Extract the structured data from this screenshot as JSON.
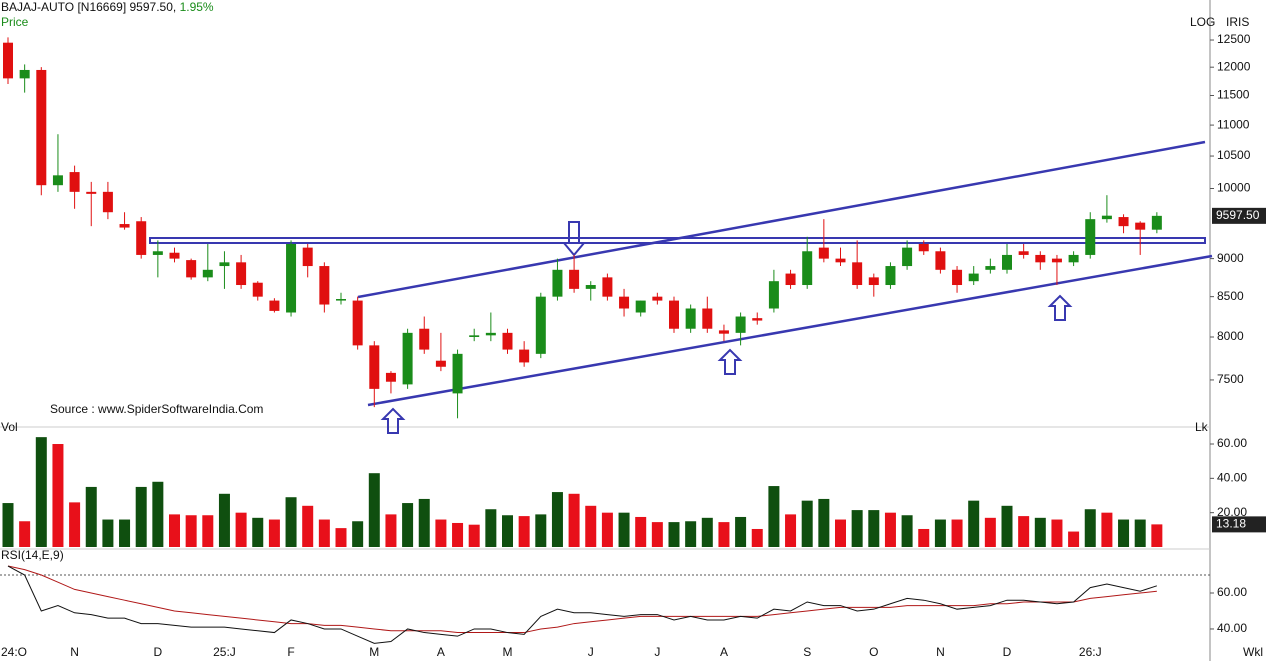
{
  "chart_data": [
    {
      "type": "candlestick",
      "title": "BAJAJ-AUTO [N16669] 9597.50,",
      "change_label": "1.95%",
      "y_label": "Price",
      "scale_label": "LOG",
      "brand": "IRIS",
      "annotation": "Source : www.SpiderSoftwareIndia.Com",
      "log": true,
      "up_color": "#1a8c1a",
      "down_color": "#e01010",
      "ylim": [
        7009,
        12979
      ],
      "yticks": [
        7500,
        8000,
        8500,
        9000,
        10000,
        10500,
        11000,
        11500,
        12000,
        12500
      ],
      "last_price": {
        "value": 9597.5,
        "label": "9597.50"
      },
      "open": [
        12450,
        11800,
        11950,
        10050,
        10250,
        9950,
        9950,
        9480,
        9520,
        9050,
        9080,
        8980,
        8750,
        8900,
        8950,
        8680,
        8450,
        8300,
        9150,
        8900,
        8450,
        8450,
        7900,
        7580,
        7450,
        8100,
        7720,
        7350,
        8000,
        8020,
        8050,
        7850,
        7800,
        8500,
        8850,
        8600,
        8750,
        8500,
        8300,
        8500,
        8450,
        8100,
        8350,
        8080,
        8050,
        8230,
        8350,
        8800,
        8650,
        9150,
        9000,
        8950,
        8750,
        8650,
        8900,
        9200,
        9100,
        8850,
        8700,
        8850,
        8850,
        9100,
        9050,
        9000,
        8950,
        9050,
        9550,
        9580,
        9500,
        9400
      ],
      "high": [
        12550,
        12050,
        12000,
        10850,
        10350,
        10100,
        10100,
        9650,
        9580,
        9250,
        9150,
        9000,
        9200,
        9100,
        9050,
        8700,
        8480,
        9250,
        9200,
        8950,
        8550,
        8500,
        7950,
        7600,
        8100,
        8250,
        8050,
        7850,
        8100,
        8300,
        8100,
        7950,
        8550,
        9000,
        9050,
        8700,
        8800,
        8600,
        8450,
        8550,
        8500,
        8400,
        8500,
        8150,
        8300,
        8300,
        8850,
        8850,
        9300,
        9550,
        9150,
        9250,
        8800,
        8950,
        9250,
        9250,
        9150,
        8900,
        8900,
        9000,
        9200,
        9200,
        9100,
        9050,
        9100,
        9650,
        9900,
        9620,
        9520,
        9650
      ],
      "low": [
        11700,
        11550,
        9900,
        9950,
        9700,
        9450,
        9550,
        9400,
        9000,
        8750,
        8950,
        8720,
        8700,
        8600,
        8600,
        8450,
        8300,
        8250,
        8750,
        8300,
        8400,
        7850,
        7200,
        7350,
        7400,
        7800,
        7600,
        7080,
        7950,
        7950,
        7800,
        7650,
        7750,
        8450,
        8550,
        8450,
        8450,
        8250,
        8250,
        8400,
        8050,
        8050,
        8050,
        7950,
        7900,
        8150,
        8300,
        8600,
        8600,
        8950,
        8900,
        8600,
        8500,
        8600,
        8850,
        9050,
        8800,
        8550,
        8650,
        8800,
        8800,
        9000,
        8850,
        8650,
        8900,
        9000,
        9500,
        9350,
        9050,
        9350
      ],
      "close": [
        11800,
        11950,
        10050,
        10200,
        9950,
        9920,
        9650,
        9430,
        9050,
        9100,
        9000,
        8750,
        8850,
        8950,
        8650,
        8500,
        8320,
        9200,
        8900,
        8400,
        8470,
        7900,
        7400,
        7480,
        8050,
        7850,
        7650,
        7800,
        8020,
        8050,
        7850,
        7700,
        8500,
        8850,
        8600,
        8650,
        8500,
        8350,
        8450,
        8450,
        8100,
        8350,
        8100,
        8040,
        8250,
        8200,
        8700,
        8650,
        9100,
        9000,
        8950,
        8650,
        8650,
        8900,
        9150,
        9100,
        8850,
        8650,
        8800,
        8900,
        9050,
        9050,
        8950,
        8950,
        9050,
        9550,
        9600,
        9450,
        9400,
        9597.5
      ]
    },
    {
      "type": "bar",
      "y_label": "Vol",
      "unit_label": "Lk",
      "ylim": [
        0,
        67
      ],
      "yticks": [
        {
          "value": 20,
          "label": "20.00"
        },
        {
          "value": 40,
          "label": "40.00"
        },
        {
          "value": 60,
          "label": "60.00"
        }
      ],
      "values": [
        25.6,
        15,
        64,
        60,
        26,
        35,
        16,
        16,
        35,
        38,
        19,
        18.5,
        18.5,
        31,
        20,
        17,
        16,
        29,
        24,
        16,
        11,
        15,
        43,
        19,
        25.6,
        28,
        16,
        14,
        13,
        22,
        18.5,
        18,
        19,
        32,
        31,
        24,
        20,
        20,
        17.5,
        14.5,
        14.5,
        15,
        17,
        14.5,
        17.5,
        10.5,
        35.5,
        19,
        27,
        28,
        16,
        21.5,
        21.5,
        20,
        18.5,
        10.5,
        16,
        16,
        27,
        17,
        24,
        18,
        17,
        16,
        9,
        22,
        20,
        16,
        16,
        13.18
      ],
      "colors": [
        "#0f4f0f",
        "#e8101a",
        "#0f4f0f",
        "#e8101a",
        "#e8101a",
        "#0f4f0f",
        "#0f4f0f",
        "#0f4f0f",
        "#0f4f0f",
        "#0f4f0f",
        "#e8101a",
        "#e8101a",
        "#e8101a",
        "#0f4f0f",
        "#e8101a",
        "#0f4f0f",
        "#e8101a",
        "#0f4f0f",
        "#e8101a",
        "#e8101a",
        "#e8101a",
        "#0f4f0f",
        "#0f4f0f",
        "#e8101a",
        "#0f4f0f",
        "#0f4f0f",
        "#e8101a",
        "#e8101a",
        "#e8101a",
        "#0f4f0f",
        "#0f4f0f",
        "#e8101a",
        "#0f4f0f",
        "#0f4f0f",
        "#e8101a",
        "#e8101a",
        "#e8101a",
        "#0f4f0f",
        "#e8101a",
        "#e8101a",
        "#0f4f0f",
        "#0f4f0f",
        "#0f4f0f",
        "#e8101a",
        "#0f4f0f",
        "#e8101a",
        "#0f4f0f",
        "#e8101a",
        "#0f4f0f",
        "#0f4f0f",
        "#e8101a",
        "#0f4f0f",
        "#0f4f0f",
        "#e8101a",
        "#0f4f0f",
        "#e8101a",
        "#0f4f0f",
        "#e8101a",
        "#0f4f0f",
        "#e8101a",
        "#0f4f0f",
        "#e8101a",
        "#0f4f0f",
        "#e8101a",
        "#e8101a",
        "#0f4f0f",
        "#e8101a",
        "#0f4f0f",
        "#0f4f0f",
        "#e8101a"
      ]
    },
    {
      "type": "line",
      "title": "RSI(14,E,9)",
      "period_label": "Wkl",
      "ylim": [
        28.3,
        82.8
      ],
      "yticks": [
        {
          "value": 40,
          "label": "40.00"
        },
        {
          "value": 60,
          "label": "60.00"
        }
      ],
      "ref_line": 70,
      "categories": [
        "24:O",
        null,
        null,
        null,
        "N",
        null,
        null,
        null,
        null,
        "D",
        null,
        null,
        null,
        "25:J",
        null,
        null,
        null,
        "F",
        null,
        null,
        null,
        null,
        "M",
        null,
        null,
        null,
        "A",
        null,
        null,
        null,
        "M",
        null,
        null,
        null,
        null,
        "J",
        null,
        null,
        null,
        "J",
        null,
        null,
        null,
        "A",
        null,
        null,
        null,
        null,
        "S",
        null,
        null,
        null,
        "O",
        null,
        null,
        null,
        "N",
        null,
        null,
        null,
        "D",
        null,
        null,
        null,
        null,
        "26:J",
        null,
        null,
        null,
        null
      ],
      "series": [
        {
          "color": "#111111",
          "values": [
            75,
            70,
            50,
            53,
            49,
            48,
            46,
            46,
            43,
            43,
            42,
            41,
            41,
            41,
            40,
            39,
            38,
            45,
            43,
            40,
            40,
            36,
            32,
            33,
            40,
            38,
            37,
            36,
            40,
            40,
            38,
            37,
            47,
            51,
            49,
            49,
            48,
            47,
            48,
            48,
            45,
            47,
            45,
            45,
            47,
            46,
            51,
            50,
            55,
            53,
            53,
            50,
            51,
            54,
            57,
            56,
            54,
            51,
            52,
            53,
            56,
            56,
            55,
            54,
            55,
            63,
            65,
            63,
            61,
            64
          ]
        },
        {
          "color": "#b01818",
          "values": [
            75,
            73,
            70,
            66,
            62,
            60,
            58,
            56,
            54,
            52,
            50,
            49,
            48,
            47,
            46,
            45,
            44,
            43,
            43,
            42,
            42,
            41,
            40,
            39,
            39,
            39,
            39,
            38,
            38,
            38,
            38,
            38,
            40,
            41,
            43,
            44,
            45,
            46,
            47,
            47,
            47,
            47,
            47,
            47,
            47,
            47,
            48,
            49,
            50,
            51,
            52,
            52,
            52,
            52,
            53,
            53,
            53,
            53,
            53,
            54,
            54,
            55,
            55,
            55,
            55,
            57,
            58,
            59,
            60,
            61
          ]
        }
      ]
    }
  ]
}
